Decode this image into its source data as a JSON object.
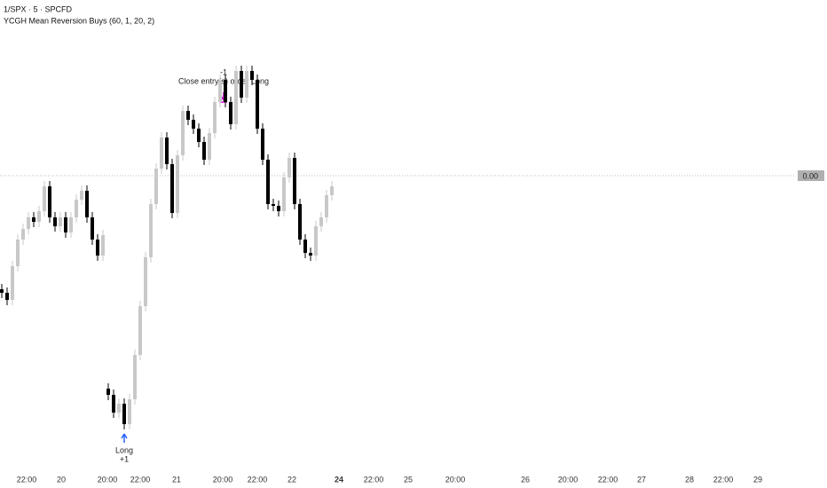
{
  "chart_data": {
    "type": "candlestick",
    "title": "1/SPX · 5 · SPCFD",
    "subtitle": "YCGH Mean Reversion Buys (60, 1, 20, 2)",
    "up_color": "#c8c8c8",
    "down_color": "#000000",
    "ylim": [
      -3.32,
      1.98
    ],
    "yticks": [
      {
        "value": 0,
        "label": "0.00"
      }
    ],
    "xlabels": [
      "22:00",
      "20",
      "20:00",
      "22:00",
      "21",
      "20:00",
      "22:00",
      "22",
      "24",
      "22:00",
      "25",
      "20:00",
      "26",
      "20:00",
      "22:00",
      "27",
      "28",
      "22:00",
      "29"
    ],
    "open": [
      -1.28,
      -1.32,
      -1.4,
      -1.02,
      -0.72,
      -0.6,
      -0.47,
      -0.52,
      -0.4,
      -0.12,
      -0.47,
      -0.57,
      -0.47,
      -0.64,
      -0.47,
      -0.27,
      -0.17,
      -0.47,
      -0.72,
      -0.9,
      -2.4,
      -2.47,
      -2.67,
      -2.57,
      -2.8,
      -2.52,
      -2.02,
      -1.47,
      -0.92,
      -0.32,
      0.08,
      0.43,
      0.13,
      -0.42,
      0.23,
      0.73,
      0.63,
      0.53,
      0.38,
      0.18,
      0.48,
      0.83,
      1.08,
      0.83,
      0.58,
      1.18,
      0.88,
      1.18,
      1.08,
      0.53,
      0.18,
      -0.32,
      -0.34,
      -0.4,
      -0.02,
      0.2,
      -0.32,
      -0.72,
      -0.87,
      -0.9,
      -0.57,
      -0.47,
      -0.22
    ],
    "high": [
      -1.22,
      -1.26,
      -0.96,
      -0.66,
      -0.54,
      -0.41,
      -0.41,
      -0.34,
      -0.06,
      -0.06,
      -0.41,
      -0.41,
      -0.41,
      -0.41,
      -0.21,
      -0.11,
      -0.11,
      -0.41,
      -0.66,
      -0.61,
      -2.34,
      -2.41,
      -2.51,
      -2.51,
      -2.46,
      -1.96,
      -1.41,
      -0.86,
      -0.26,
      0.14,
      0.49,
      0.49,
      0.19,
      0.29,
      0.79,
      0.79,
      0.69,
      0.59,
      0.44,
      0.54,
      0.89,
      1.14,
      1.14,
      0.89,
      1.24,
      1.24,
      1.24,
      1.24,
      1.14,
      0.59,
      0.24,
      -0.26,
      -0.28,
      0.04,
      0.26,
      0.26,
      -0.26,
      -0.66,
      -0.81,
      -0.51,
      -0.41,
      -0.16,
      -0.06
    ],
    "low": [
      -1.38,
      -1.46,
      -1.46,
      -1.08,
      -0.78,
      -0.66,
      -0.58,
      -0.58,
      -0.46,
      -0.53,
      -0.63,
      -0.63,
      -0.7,
      -0.7,
      -0.53,
      -0.33,
      -0.53,
      -0.78,
      -0.96,
      -0.96,
      -2.53,
      -2.73,
      -2.73,
      -2.86,
      -2.86,
      -2.58,
      -2.08,
      -1.53,
      -0.98,
      -0.38,
      0.02,
      0.07,
      -0.48,
      -0.48,
      0.17,
      0.57,
      0.47,
      0.32,
      0.12,
      0.12,
      0.42,
      0.77,
      0.77,
      0.52,
      0.52,
      0.82,
      0.82,
      1.02,
      0.47,
      0.12,
      -0.38,
      -0.4,
      -0.46,
      -0.46,
      -0.08,
      -0.38,
      -0.78,
      -0.93,
      -0.96,
      -0.96,
      -0.63,
      -0.53,
      -0.28
    ],
    "close": [
      -1.32,
      -1.4,
      -1.02,
      -0.72,
      -0.6,
      -0.47,
      -0.52,
      -0.4,
      -0.12,
      -0.47,
      -0.57,
      -0.47,
      -0.64,
      -0.47,
      -0.27,
      -0.17,
      -0.47,
      -0.72,
      -0.9,
      -0.67,
      -2.47,
      -2.67,
      -2.57,
      -2.8,
      -2.52,
      -2.02,
      -1.47,
      -0.92,
      -0.32,
      0.08,
      0.43,
      0.13,
      -0.42,
      0.23,
      0.73,
      0.63,
      0.53,
      0.38,
      0.18,
      0.48,
      0.83,
      1.08,
      0.83,
      0.58,
      1.18,
      0.88,
      1.18,
      1.08,
      0.53,
      0.18,
      -0.32,
      -0.34,
      -0.4,
      -0.02,
      0.2,
      -0.32,
      -0.72,
      -0.87,
      -0.9,
      -0.57,
      -0.47,
      -0.22,
      -0.12
    ],
    "annotations": {
      "entry_label": "Long",
      "entry_qty": "+1",
      "exit_qty": "-1",
      "exit_label": "Close entry(s) order Long"
    }
  }
}
